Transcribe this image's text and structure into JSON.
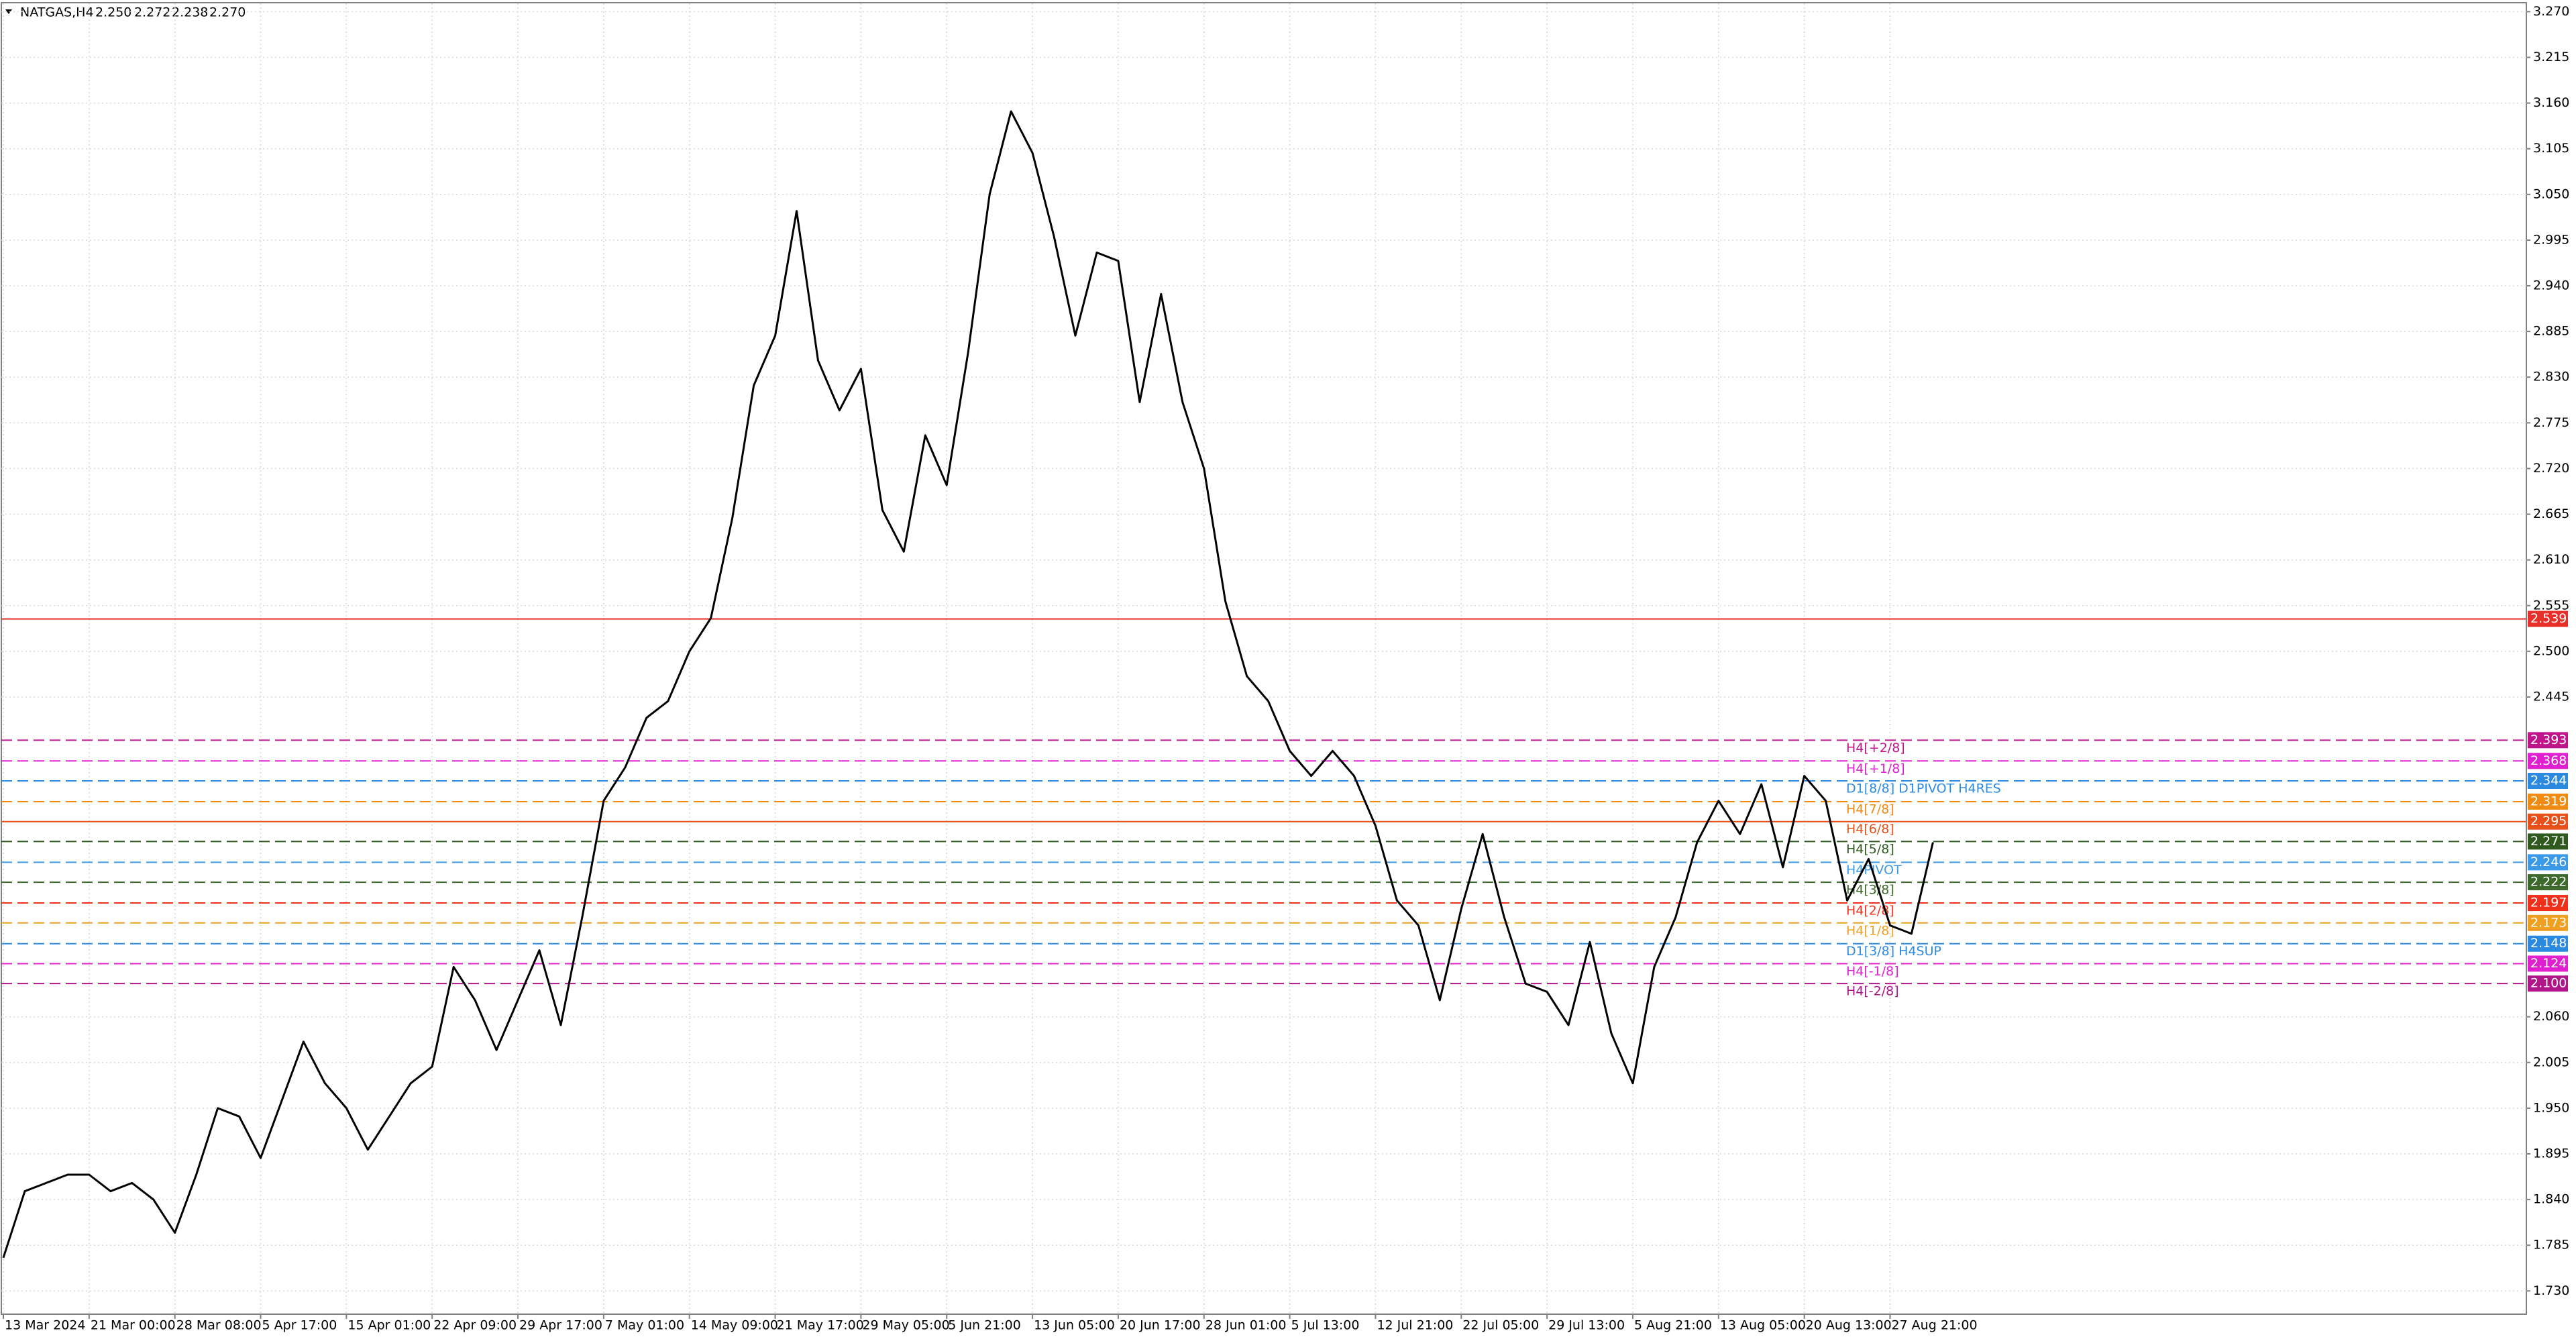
{
  "chart_data": {
    "type": "line",
    "header": {
      "symbol": "NATGAS,H4",
      "ohlc": [
        "2.250",
        "2.272",
        "2.238",
        "2.270"
      ]
    },
    "categories": [
      "13 Mar 2024",
      null,
      null,
      null,
      "21 Mar 00:00",
      null,
      null,
      null,
      "28 Mar 08:00",
      null,
      null,
      null,
      "5 Apr 17:00",
      null,
      null,
      null,
      "15 Apr 01:00",
      null,
      null,
      null,
      "22 Apr 09:00",
      null,
      null,
      null,
      "29 Apr 17:00",
      null,
      null,
      null,
      "7 May 01:00",
      null,
      null,
      null,
      "14 May 09:00",
      null,
      null,
      null,
      "21 May 17:00",
      null,
      null,
      null,
      "29 May 05:00",
      null,
      null,
      null,
      "5 Jun 21:00",
      null,
      null,
      null,
      "13 Jun 05:00",
      null,
      null,
      null,
      "20 Jun 17:00",
      null,
      null,
      null,
      "28 Jun 01:00",
      null,
      null,
      null,
      "5 Jul 13:00",
      null,
      null,
      null,
      "12 Jul 21:00",
      null,
      null,
      null,
      "22 Jul 05:00",
      null,
      null,
      null,
      "29 Jul 13:00",
      null,
      null,
      null,
      "5 Aug 21:00",
      null,
      null,
      null,
      "13 Aug 05:00",
      null,
      null,
      null,
      "20 Aug 13:00",
      null,
      null,
      null,
      "27 Aug 21:00",
      null,
      null
    ],
    "series": [
      {
        "color": "#000000",
        "values": [
          1.77,
          1.85,
          1.86,
          1.87,
          1.87,
          1.85,
          1.86,
          1.84,
          1.8,
          1.87,
          1.95,
          1.94,
          1.89,
          1.96,
          2.03,
          1.98,
          1.95,
          1.9,
          1.94,
          1.98,
          2.0,
          2.12,
          2.08,
          2.02,
          2.08,
          2.14,
          2.05,
          2.18,
          2.32,
          2.36,
          2.42,
          2.44,
          2.5,
          2.54,
          2.66,
          2.82,
          2.88,
          3.03,
          2.85,
          2.79,
          2.84,
          2.67,
          2.62,
          2.76,
          2.7,
          2.86,
          3.05,
          3.15,
          3.1,
          3.0,
          2.88,
          2.98,
          2.97,
          2.8,
          2.93,
          2.8,
          2.72,
          2.56,
          2.47,
          2.44,
          2.38,
          2.35,
          2.38,
          2.35,
          2.29,
          2.2,
          2.17,
          2.08,
          2.19,
          2.28,
          2.18,
          2.1,
          2.09,
          2.05,
          2.15,
          2.04,
          1.98,
          2.12,
          2.18,
          2.27,
          2.32,
          2.28,
          2.34,
          2.24,
          2.35,
          2.32,
          2.2,
          2.25,
          2.17,
          2.16,
          2.27
        ]
      }
    ],
    "ylim": [
      1.702,
      3.28
    ],
    "yticks": [
      {
        "value": 3.27,
        "label": "3.270"
      },
      3.215,
      {
        "value": 3.16,
        "label": "3.160"
      },
      3.105,
      {
        "value": 3.05,
        "label": "3.050"
      },
      2.995,
      {
        "value": 2.94,
        "label": "2.940"
      },
      2.885,
      {
        "value": 2.83,
        "label": "2.830"
      },
      2.775,
      {
        "value": 2.72,
        "label": "2.720"
      },
      2.665,
      {
        "value": 2.61,
        "label": "2.610"
      },
      2.555,
      {
        "value": 2.5,
        "label": "2.500"
      },
      2.445,
      {
        "value": 2.06,
        "label": "2.060"
      },
      2.005,
      {
        "value": 1.95,
        "label": "1.950"
      },
      1.895,
      {
        "value": 1.84,
        "label": "1.840"
      },
      1.785,
      {
        "value": 1.73,
        "label": "1.730"
      }
    ],
    "grid": true,
    "levels": [
      {
        "value": 2.539,
        "color": "#e8302a",
        "dashed": false
      },
      {
        "name": "H4[+2/8]",
        "value": 2.393,
        "color": "#c0158a",
        "dashed": true
      },
      {
        "name": "H4[+1/8]",
        "value": 2.368,
        "color": "#e020d0",
        "dashed": true
      },
      {
        "name": "D1[8/8] D1PIVOT H4RES",
        "value": 2.344,
        "color": "#2b8ae0",
        "dashed": true
      },
      {
        "name": "H4[7/8]",
        "value": 2.319,
        "color": "#f08a10",
        "dashed": true
      },
      {
        "name": "H4[6/8]",
        "value": 2.295,
        "color": "#e8501a",
        "dashed": false
      },
      {
        "name": "H4[5/8]",
        "value": 2.271,
        "color": "#2e5a1e",
        "dashed": true
      },
      {
        "name": "H4PIVOT",
        "value": 2.246,
        "color": "#3a9ae8",
        "dashed": true
      },
      {
        "name": "H4[3/8]",
        "value": 2.222,
        "color": "#3d6a2a",
        "dashed": true
      },
      {
        "name": "H4[2/8]",
        "value": 2.197,
        "color": "#f0301a",
        "dashed": true
      },
      {
        "name": "H4[1/8]",
        "value": 2.173,
        "color": "#f0a020",
        "dashed": true
      },
      {
        "name": "D1[3/8] H4SUP",
        "value": 2.148,
        "color": "#2b8ae0",
        "dashed": true
      },
      {
        "name": "H4[-1/8]",
        "value": 2.124,
        "color": "#e020d0",
        "dashed": true
      },
      {
        "name": "H4[-2/8]",
        "value": 2.1,
        "value_label": "2.100",
        "color": "#b0158a",
        "dashed": true
      }
    ]
  }
}
